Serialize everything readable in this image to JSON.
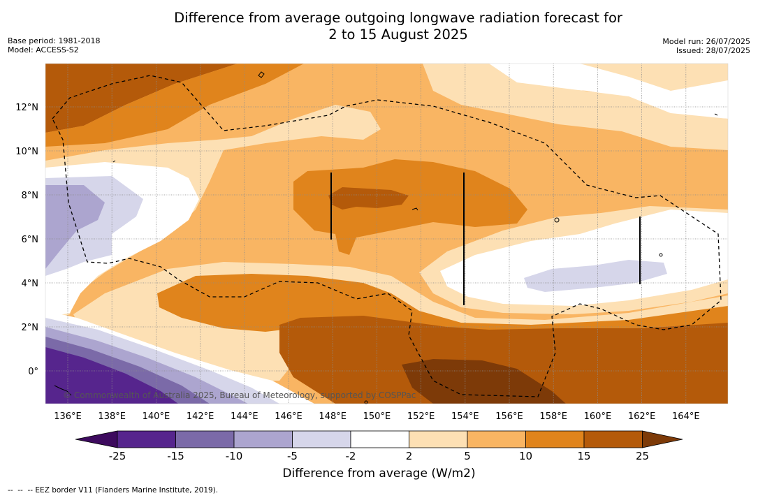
{
  "title_line1": "Difference from average outgoing longwave radiation forecast for",
  "title_line2": "2 to 15 August 2025",
  "base_period": "Base period: 1981-2018",
  "model": "Model: ACCESS-S2",
  "model_run": "Model run: 26/07/2025",
  "issued": "Issued: 28/07/2025",
  "x_ticks": [
    "136°E",
    "138°E",
    "140°E",
    "142°E",
    "144°E",
    "146°E",
    "148°E",
    "150°E",
    "152°E",
    "154°E",
    "156°E",
    "158°E",
    "160°E",
    "162°E",
    "164°E"
  ],
  "y_ticks": [
    "0°",
    "2°N",
    "4°N",
    "6°N",
    "8°N",
    "10°N",
    "12°N"
  ],
  "copyright": "© Commonwealth of Australia 2025, Bureau of Meteorology, supported by COSPPac",
  "colorbar": {
    "labels": [
      "-25",
      "-15",
      "-10",
      "-5",
      "-2",
      "2",
      "5",
      "10",
      "15",
      "25"
    ],
    "colors": [
      "#3d0a5e",
      "#56258d",
      "#7b6aa8",
      "#aca5cf",
      "#d6d6ea",
      "#ffffff",
      "#fde0b4",
      "#f9b563",
      "#e0841c",
      "#b45a0a",
      "#7d3a08"
    ],
    "title": "Difference from average (W/m2)"
  },
  "footnote": "--  --  -- EEZ border V11 (Flanders Marine Institute, 2019)."
}
